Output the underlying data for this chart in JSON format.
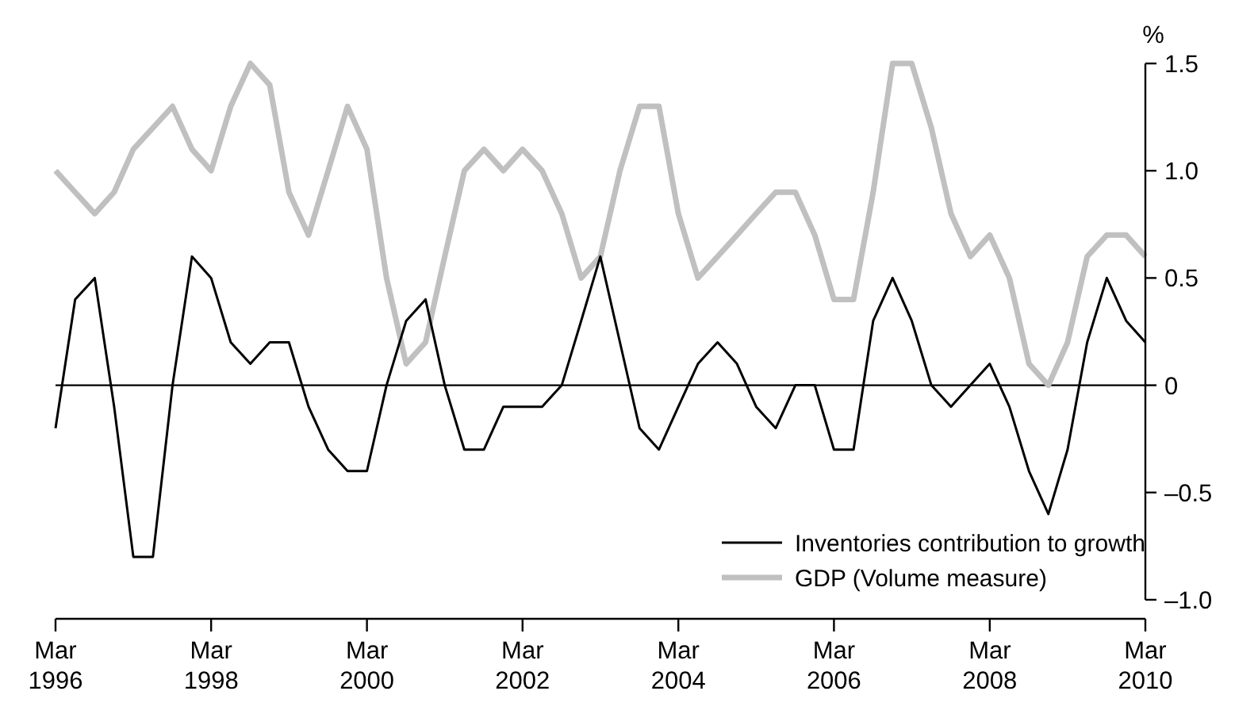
{
  "chart_data": {
    "type": "line",
    "ylabel": "%",
    "x": [
      "1996-03",
      "1996-06",
      "1996-09",
      "1996-12",
      "1997-03",
      "1997-06",
      "1997-09",
      "1997-12",
      "1998-03",
      "1998-06",
      "1998-09",
      "1998-12",
      "1999-03",
      "1999-06",
      "1999-09",
      "1999-12",
      "2000-03",
      "2000-06",
      "2000-09",
      "2000-12",
      "2001-03",
      "2001-06",
      "2001-09",
      "2001-12",
      "2002-03",
      "2002-06",
      "2002-09",
      "2002-12",
      "2003-03",
      "2003-06",
      "2003-09",
      "2003-12",
      "2004-03",
      "2004-06",
      "2004-09",
      "2004-12",
      "2005-03",
      "2005-06",
      "2005-09",
      "2005-12",
      "2006-03",
      "2006-06",
      "2006-09",
      "2006-12",
      "2007-03",
      "2007-06",
      "2007-09",
      "2007-12",
      "2008-03",
      "2008-06",
      "2008-09",
      "2008-12",
      "2009-03",
      "2009-06",
      "2009-09",
      "2009-12",
      "2010-03"
    ],
    "series": [
      {
        "name": "Inventories contribution to growth",
        "color": "#000000",
        "values": [
          -0.2,
          0.4,
          0.5,
          -0.1,
          -0.8,
          -0.8,
          0.0,
          0.6,
          0.5,
          0.2,
          0.1,
          0.2,
          0.2,
          -0.1,
          -0.3,
          -0.4,
          -0.4,
          0.0,
          0.3,
          0.4,
          0.0,
          -0.3,
          -0.3,
          -0.1,
          -0.1,
          -0.1,
          0.0,
          0.3,
          0.6,
          0.2,
          -0.2,
          -0.3,
          -0.1,
          0.1,
          0.2,
          0.1,
          -0.1,
          -0.2,
          0.0,
          0.0,
          -0.3,
          -0.3,
          0.3,
          0.5,
          0.3,
          0.0,
          -0.1,
          0.0,
          0.1,
          -0.1,
          -0.4,
          -0.6,
          -0.3,
          0.2,
          0.5,
          0.3,
          0.2
        ]
      },
      {
        "name": "GDP (Volume measure)",
        "color": "#c0c0c0",
        "values": [
          1.0,
          0.9,
          0.8,
          0.9,
          1.1,
          1.2,
          1.3,
          1.1,
          1.0,
          1.3,
          1.5,
          1.4,
          0.9,
          0.7,
          1.0,
          1.3,
          1.1,
          0.5,
          0.1,
          0.2,
          0.6,
          1.0,
          1.1,
          1.0,
          1.1,
          1.0,
          0.8,
          0.5,
          0.6,
          1.0,
          1.3,
          1.3,
          0.8,
          0.5,
          0.6,
          0.7,
          0.8,
          0.9,
          0.9,
          0.7,
          0.4,
          0.4,
          0.9,
          1.5,
          1.5,
          1.2,
          0.8,
          0.6,
          0.7,
          0.5,
          0.1,
          0.0,
          0.2,
          0.6,
          0.7,
          0.7,
          0.6
        ]
      }
    ],
    "xlim": [
      "1996-03",
      "2010-03"
    ],
    "xticks": [
      {
        "value": "1996-03",
        "label": "Mar 1996"
      },
      {
        "value": "1998-03",
        "label": "Mar 1998"
      },
      {
        "value": "2000-03",
        "label": "Mar 2000"
      },
      {
        "value": "2002-03",
        "label": "Mar 2002"
      },
      {
        "value": "2004-03",
        "label": "Mar 2004"
      },
      {
        "value": "2006-03",
        "label": "Mar 2006"
      },
      {
        "value": "2008-03",
        "label": "Mar 2008"
      },
      {
        "value": "2010-03",
        "label": "Mar 2010"
      }
    ],
    "ylim": [
      -1,
      1.5
    ],
    "yticks": [
      {
        "value": 1.5,
        "label": "1.5"
      },
      {
        "value": 1,
        "label": "1.0"
      },
      {
        "value": 0.5,
        "label": "0.5"
      },
      0,
      {
        "value": -0.5,
        "label": "–0.5"
      },
      {
        "value": -1,
        "label": "–1.0"
      }
    ],
    "ref_lines": [
      {
        "axis": "y",
        "value": 0,
        "color": "#000000"
      }
    ],
    "grid": false,
    "legend": "bottom right",
    "marker": "none",
    "line_style": "solid"
  }
}
